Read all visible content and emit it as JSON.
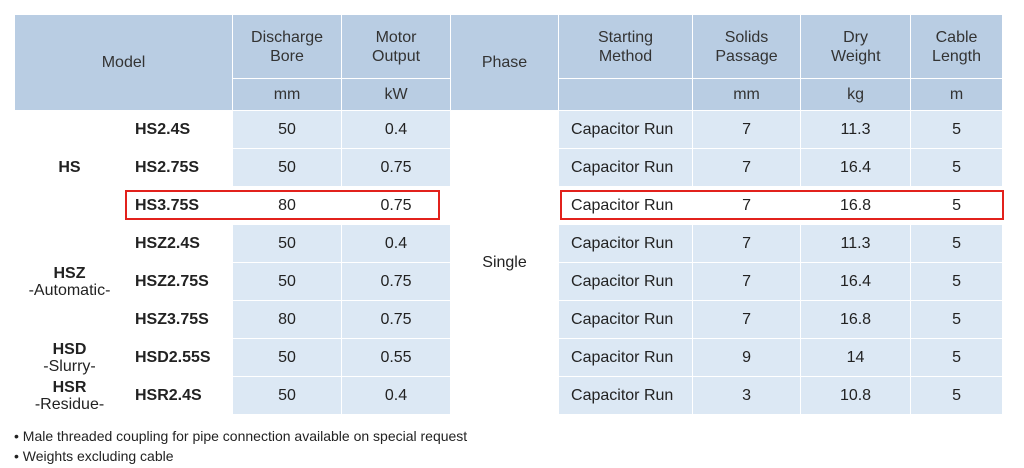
{
  "headers": {
    "model": "Model",
    "discharge_bore": "Discharge Bore",
    "motor_output": "Motor Output",
    "phase": "Phase",
    "starting_method": "Starting Method",
    "solids_passage": "Solids Passage",
    "dry_weight": "Dry Weight",
    "cable_length": "Cable Length"
  },
  "units": {
    "discharge_bore": "mm",
    "motor_output": "kW",
    "solids_passage": "mm",
    "dry_weight": "kg",
    "cable_length": "m"
  },
  "phase_value": "Single",
  "series": [
    {
      "name": "HS",
      "sub": ""
    },
    {
      "name": "HSZ",
      "sub": "-Automatic-"
    },
    {
      "name": "HSD",
      "sub": "-Slurry-"
    },
    {
      "name": "HSR",
      "sub": "-Residue-"
    }
  ],
  "rows": [
    {
      "model": "HS2.4S",
      "bore": "50",
      "output": "0.4",
      "method": "Capacitor Run",
      "solids": "7",
      "weight": "11.3",
      "cable": "5"
    },
    {
      "model": "HS2.75S",
      "bore": "50",
      "output": "0.75",
      "method": "Capacitor Run",
      "solids": "7",
      "weight": "16.4",
      "cable": "5"
    },
    {
      "model": "HS3.75S",
      "bore": "80",
      "output": "0.75",
      "method": "Capacitor Run",
      "solids": "7",
      "weight": "16.8",
      "cable": "5"
    },
    {
      "model": "HSZ2.4S",
      "bore": "50",
      "output": "0.4",
      "method": "Capacitor Run",
      "solids": "7",
      "weight": "11.3",
      "cable": "5"
    },
    {
      "model": "HSZ2.75S",
      "bore": "50",
      "output": "0.75",
      "method": "Capacitor Run",
      "solids": "7",
      "weight": "16.4",
      "cable": "5"
    },
    {
      "model": "HSZ3.75S",
      "bore": "80",
      "output": "0.75",
      "method": "Capacitor Run",
      "solids": "7",
      "weight": "16.8",
      "cable": "5"
    },
    {
      "model": "HSD2.55S",
      "bore": "50",
      "output": "0.55",
      "method": "Capacitor Run",
      "solids": "9",
      "weight": "14",
      "cable": "5"
    },
    {
      "model": "HSR2.4S",
      "bore": "50",
      "output": "0.4",
      "method": "Capacitor Run",
      "solids": "3",
      "weight": "10.8",
      "cable": "5"
    }
  ],
  "notes": [
    "• Male threaded coupling for pipe connection available on special request",
    "• Weights excluding cable"
  ],
  "highlight_color": "#e2211c"
}
